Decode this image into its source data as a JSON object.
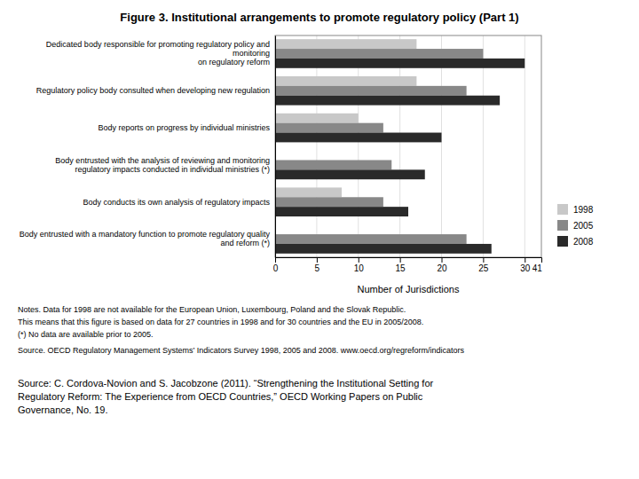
{
  "chart_data": {
    "type": "bar",
    "orientation": "horizontal",
    "title": "Figure 3.  Institutional arrangements to promote regulatory policy (Part 1)",
    "categories": [
      "Dedicated body responsible for promoting regulatory policy and\nmonitoring\non regulatory reform",
      "Regulatory policy body consulted when developing new regulation",
      "Body reports on progress by individual ministries",
      "Body entrusted with the analysis of reviewing and monitoring\nregulatory impacts conducted in individual ministries (*)",
      "Body conducts its own analysis of regulatory impacts",
      "Body entrusted with a mandatory function to promote regulatory quality\nand reform (*)"
    ],
    "series": [
      {
        "name": "1998",
        "color": "#c8c8c8",
        "values": [
          17,
          17,
          10,
          null,
          8,
          null
        ]
      },
      {
        "name": "2005",
        "color": "#888888",
        "values": [
          25,
          23,
          13,
          14,
          13,
          23
        ]
      },
      {
        "name": "2008",
        "color": "#2a2a2a",
        "values": [
          30,
          27,
          20,
          18,
          16,
          26
        ]
      }
    ],
    "x_label": "Number of Jurisdictions",
    "xlim": [
      0,
      32
    ],
    "xticks": [
      0,
      5,
      10,
      15,
      20,
      25,
      30
    ],
    "annotations": [
      {
        "text": "41",
        "x": 31.5
      }
    ],
    "grid": true,
    "legend": "right",
    "notes": [
      "Notes. Data for 1998 are not available for the European Union, Luxembourg, Poland and the Slovak Republic.",
      "This means that this figure is based on data for 27 countries in 1998 and for 30 countries and the EU in 2005/2008.",
      "(*) No data are available prior to 2005.",
      "Source. OECD Regulatory Management Systems’ Indicators Survey 1998, 2005 and 2008.  www.oecd.org/regreform/indicators"
    ],
    "caption": "Source: C. Cordova-Novion and S. Jacobzone (2011). “Strengthening the Institutional Setting for\nRegulatory Reform: The Experience from OECD Countries,” OECD Working Papers on Public\nGovernance, No. 19."
  }
}
